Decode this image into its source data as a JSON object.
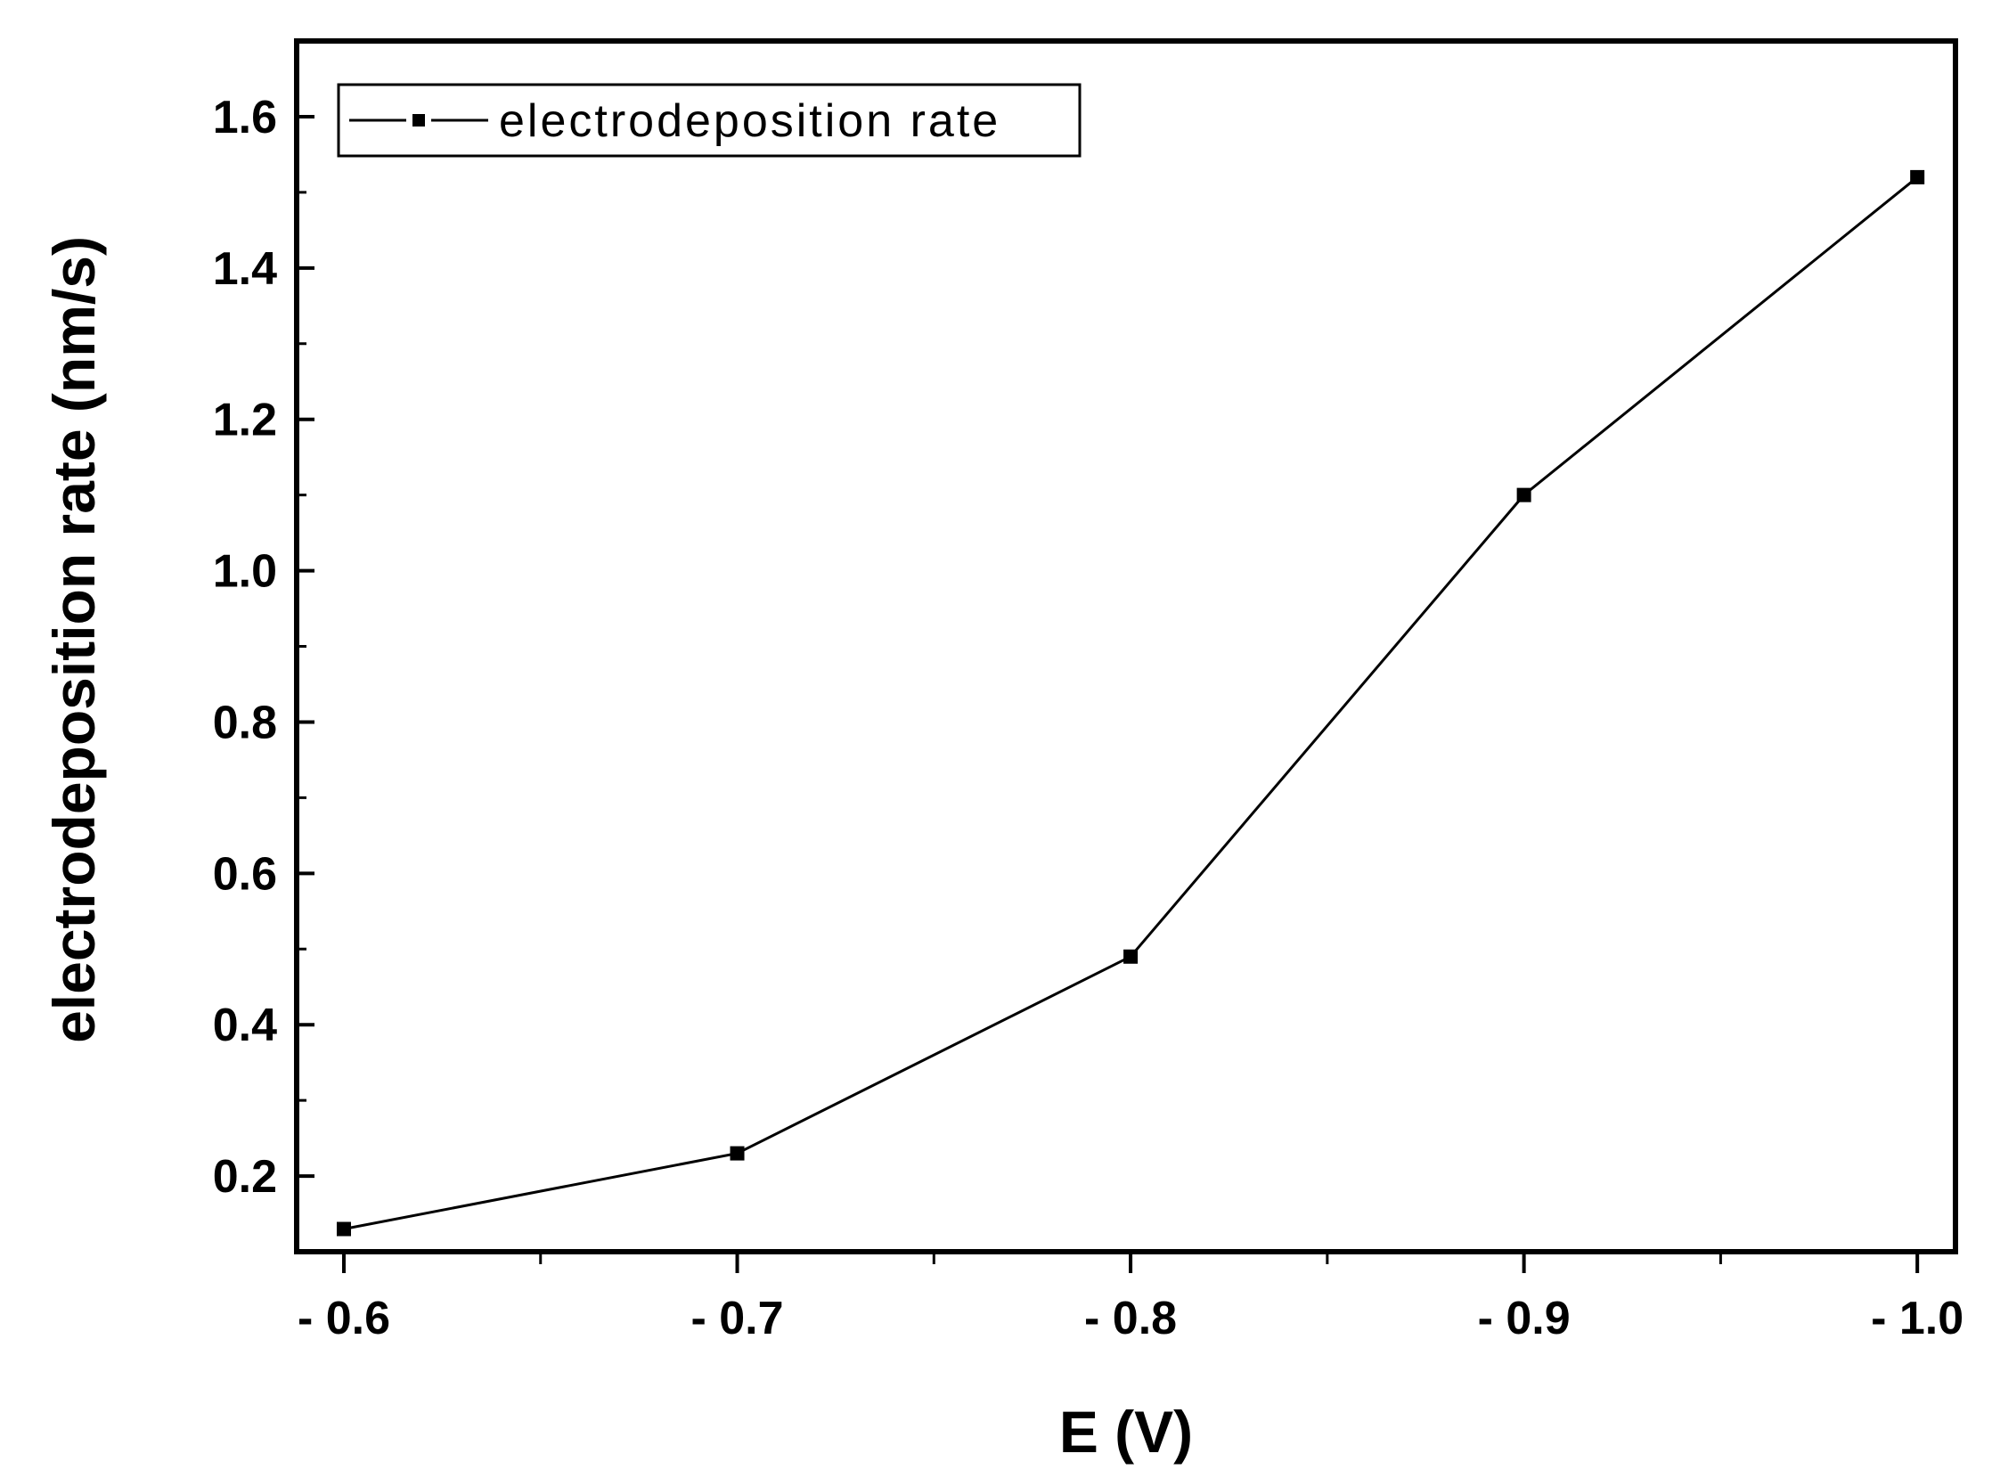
{
  "chart_data": {
    "type": "line",
    "title": "",
    "xlabel": "E (V)",
    "ylabel": "electrodeposition rate (nm/s)",
    "x_tick_labels": [
      "- 0.6",
      "- 0.7",
      "- 0.8",
      "- 0.9",
      "- 1.0"
    ],
    "x_ticks": [
      -0.6,
      -0.7,
      -0.8,
      -0.9,
      -1.0
    ],
    "y_tick_labels": [
      "0.2",
      "0.4",
      "0.6",
      "0.8",
      "1.0",
      "1.2",
      "1.4",
      "1.6"
    ],
    "y_ticks": [
      0.2,
      0.4,
      0.6,
      0.8,
      1.0,
      1.2,
      1.4,
      1.6
    ],
    "xlim": [
      -0.588,
      -1.0097
    ],
    "ylim": [
      0.1,
      1.7
    ],
    "x_axis_reversed": true,
    "grid": false,
    "legend_position": "top-left",
    "series": [
      {
        "name": "electrodeposition rate",
        "color": "#000000",
        "marker": "square",
        "x": [
          -0.6,
          -0.7,
          -0.8,
          -0.9,
          -1.0
        ],
        "y": [
          0.13,
          0.23,
          0.49,
          1.1,
          1.52
        ]
      }
    ]
  }
}
